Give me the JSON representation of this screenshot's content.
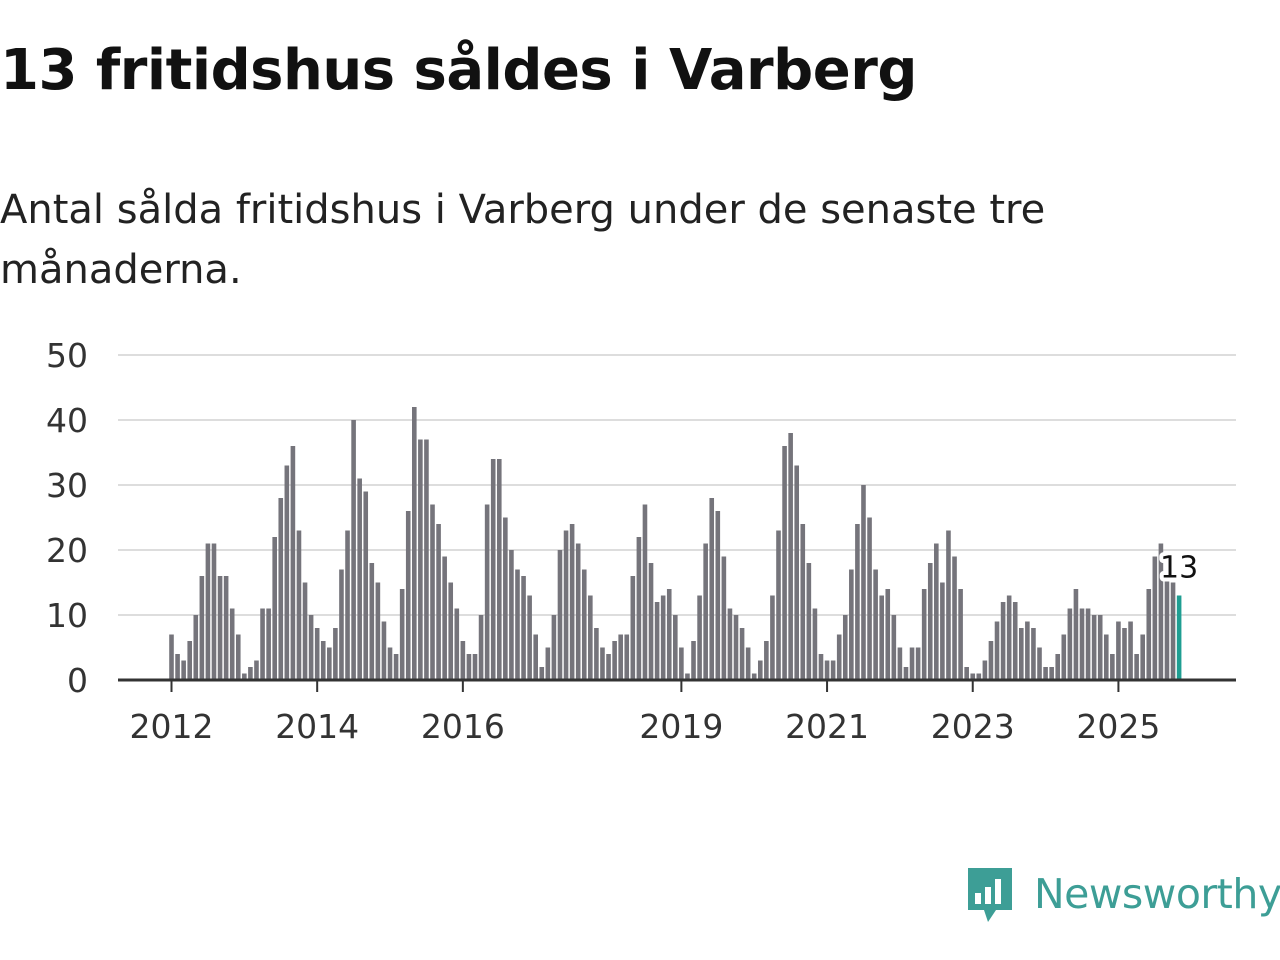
{
  "header": {
    "title": "13 fritidshus såldes i Varberg",
    "subtitle": "Antal sålda fritidshus i Varberg under de senaste tre månaderna."
  },
  "brand": {
    "name": "Newsworthy",
    "color": "#3d9e96"
  },
  "colors": {
    "bar": "#75747b",
    "highlight": "#1f9e92",
    "grid": "#dddddd",
    "axis": "#333333"
  },
  "chart_data": {
    "type": "bar",
    "title": "13 fritidshus såldes i Varberg",
    "subtitle": "Antal sålda fritidshus i Varberg under de senaste tre månaderna.",
    "xlabel": "",
    "ylabel": "",
    "ylim": [
      0,
      50
    ],
    "yticks": [
      0,
      10,
      20,
      30,
      40,
      50
    ],
    "xtick_labels": [
      {
        "label": "2012",
        "index": 0
      },
      {
        "label": "2014",
        "index": 24
      },
      {
        "label": "2016",
        "index": 48
      },
      {
        "label": "2019",
        "index": 84
      },
      {
        "label": "2021",
        "index": 108
      },
      {
        "label": "2023",
        "index": 132
      },
      {
        "label": "2025",
        "index": 156
      }
    ],
    "start": "2012-01",
    "period": "rolling three months, monthly",
    "values": [
      7,
      4,
      3,
      6,
      10,
      16,
      21,
      21,
      16,
      16,
      11,
      7,
      1,
      2,
      3,
      11,
      11,
      22,
      28,
      33,
      36,
      23,
      15,
      10,
      8,
      6,
      5,
      8,
      17,
      23,
      40,
      31,
      29,
      18,
      15,
      9,
      5,
      4,
      14,
      26,
      42,
      37,
      37,
      27,
      24,
      19,
      15,
      11,
      6,
      4,
      4,
      10,
      27,
      34,
      34,
      25,
      20,
      17,
      16,
      13,
      7,
      2,
      5,
      10,
      20,
      23,
      24,
      21,
      17,
      13,
      8,
      5,
      4,
      6,
      7,
      7,
      16,
      22,
      27,
      18,
      12,
      13,
      14,
      10,
      5,
      1,
      6,
      13,
      21,
      28,
      26,
      19,
      11,
      10,
      8,
      5,
      1,
      3,
      6,
      13,
      23,
      36,
      38,
      33,
      24,
      18,
      11,
      4,
      3,
      3,
      7,
      10,
      17,
      24,
      30,
      25,
      17,
      13,
      14,
      10,
      5,
      2,
      5,
      5,
      14,
      18,
      21,
      15,
      23,
      19,
      14,
      2,
      1,
      1,
      3,
      6,
      9,
      12,
      13,
      12,
      8,
      9,
      8,
      5,
      2,
      2,
      4,
      7,
      11,
      14,
      11,
      11,
      10,
      10,
      7,
      4,
      9,
      8,
      9,
      4,
      7,
      14,
      19,
      21,
      16,
      15,
      13
    ],
    "highlight_last": true,
    "last_value_label": "13"
  }
}
